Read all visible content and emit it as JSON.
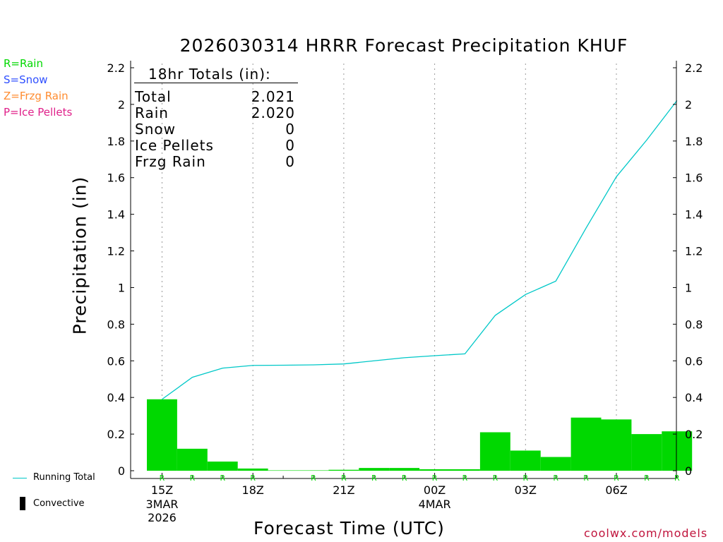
{
  "title": "2026030314 HRRR Forecast Precipitation KHUF",
  "ylabel": "Precipitation (in)",
  "xlabel": "Forecast Time (UTC)",
  "credit": "coolwx.com/models",
  "colors": {
    "rain": "#00d800",
    "running_total": "#00c8c8",
    "legend_rain": "#00d800",
    "legend_snow": "#3050ff",
    "legend_frzg": "#ff8c30",
    "legend_ice": "#e0208a",
    "credit": "#c0143c"
  },
  "type_legend": [
    {
      "label": "R=Rain",
      "color_key": "legend_rain"
    },
    {
      "label": "S=Snow",
      "color_key": "legend_snow"
    },
    {
      "label": "Z=Frzg Rain",
      "color_key": "legend_frzg"
    },
    {
      "label": "P=Ice Pellets",
      "color_key": "legend_ice"
    }
  ],
  "line_legend": {
    "running_total": "Running Total",
    "convective": "Convective"
  },
  "totals": {
    "heading": "18hr Totals (in):",
    "rows": [
      {
        "label": "Total",
        "value": "2.021"
      },
      {
        "label": "Rain",
        "value": "2.020"
      },
      {
        "label": "Snow",
        "value": "0"
      },
      {
        "label": "Ice Pellets",
        "value": "0"
      },
      {
        "label": "Frzg Rain",
        "value": "0"
      }
    ]
  },
  "chart_data": {
    "type": "bar",
    "x_hours": [
      15,
      16,
      17,
      18,
      19,
      20,
      21,
      22,
      23,
      24,
      25,
      26,
      27,
      28,
      29,
      30,
      31,
      32
    ],
    "values": [
      0.39,
      0.12,
      0.05,
      0.012,
      0.002,
      0.002,
      0.005,
      0.015,
      0.015,
      0.008,
      0.008,
      0.21,
      0.11,
      0.075,
      0.29,
      0.28,
      0.2,
      0.215
    ],
    "types": [
      "R",
      "R",
      "R",
      "R",
      "",
      "R",
      "R",
      "R",
      "R",
      "R",
      "R",
      "R",
      "R",
      "R",
      "R",
      "R",
      "R",
      "R"
    ],
    "running_total": [
      0.39,
      0.51,
      0.56,
      0.575,
      0.576,
      0.578,
      0.583,
      0.6,
      0.617,
      0.628,
      0.638,
      0.848,
      0.962,
      1.035,
      1.325,
      1.605,
      1.805,
      2.021
    ],
    "ylim": [
      0,
      2.2
    ],
    "yticks": [
      "0",
      "0.2",
      "0.4",
      "0.6",
      "0.8",
      "1",
      "1.2",
      "1.4",
      "1.6",
      "1.8",
      "2",
      "2.2"
    ],
    "xticks": [
      {
        "hour": 15,
        "label": "15Z",
        "sub": [
          "3MAR",
          "2026"
        ]
      },
      {
        "hour": 18,
        "label": "18Z",
        "sub": []
      },
      {
        "hour": 21,
        "label": "21Z",
        "sub": []
      },
      {
        "hour": 24,
        "label": "00Z",
        "sub": [
          "4MAR"
        ]
      },
      {
        "hour": 27,
        "label": "03Z",
        "sub": []
      },
      {
        "hour": 30,
        "label": "06Z",
        "sub": []
      }
    ],
    "grid": "dotted vertical at labeled hours",
    "legend": "left"
  }
}
